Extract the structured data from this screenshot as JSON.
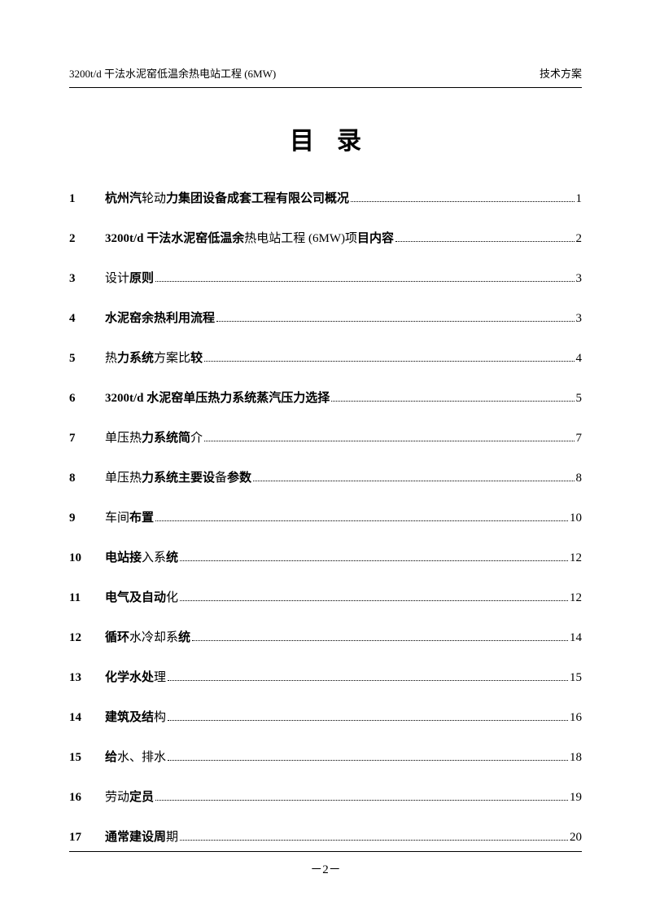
{
  "header": {
    "left": "3200t/d 干法水泥窑低温余热电站工程 (6MW)",
    "right": "技术方案"
  },
  "title": "目录",
  "toc": [
    {
      "num": "1",
      "parts": [
        {
          "t": "杭州汽",
          "b": true
        },
        {
          "t": "轮动",
          "b": false
        },
        {
          "t": "力集团设备成套工程有限公司概况",
          "b": true
        }
      ],
      "page": "1"
    },
    {
      "num": "2",
      "parts": [
        {
          "t": "3200t/d 干法水泥窑低温余",
          "b": true
        },
        {
          "t": "热电站工程 (6MW)项",
          "b": false
        },
        {
          "t": "目内容",
          "b": true
        }
      ],
      "page": "2"
    },
    {
      "num": "3",
      "parts": [
        {
          "t": "设计",
          "b": false
        },
        {
          "t": "原则",
          "b": true
        }
      ],
      "page": "3"
    },
    {
      "num": "4",
      "parts": [
        {
          "t": "水泥窑余",
          "b": true
        },
        {
          "t": "热利用流程",
          "b": true
        }
      ],
      "page": "3"
    },
    {
      "num": "5",
      "parts": [
        {
          "t": "热",
          "b": false
        },
        {
          "t": "力系统",
          "b": true
        },
        {
          "t": "方案比",
          "b": false
        },
        {
          "t": "较",
          "b": true
        }
      ],
      "page": "4"
    },
    {
      "num": "6",
      "parts": [
        {
          "t": "3200t/d 水泥窑单压热力系统蒸汽压力选择",
          "b": true
        }
      ],
      "page": "5"
    },
    {
      "num": "7",
      "parts": [
        {
          "t": "单压热",
          "b": false
        },
        {
          "t": "力系统简",
          "b": true
        },
        {
          "t": "介",
          "b": false
        }
      ],
      "page": "7"
    },
    {
      "num": "8",
      "parts": [
        {
          "t": "单压热",
          "b": false
        },
        {
          "t": "力系统主要设",
          "b": true
        },
        {
          "t": "备",
          "b": false
        },
        {
          "t": "参数",
          "b": true
        }
      ],
      "page": "8"
    },
    {
      "num": "9",
      "parts": [
        {
          "t": "车间",
          "b": false
        },
        {
          "t": "布置",
          "b": true
        }
      ],
      "page": "10"
    },
    {
      "num": "10",
      "parts": [
        {
          "t": "电站接",
          "b": true
        },
        {
          "t": "入系",
          "b": false
        },
        {
          "t": "统",
          "b": true
        }
      ],
      "page": "12"
    },
    {
      "num": "11",
      "parts": [
        {
          "t": "电气及自动",
          "b": true
        },
        {
          "t": "化",
          "b": false
        }
      ],
      "page": "12"
    },
    {
      "num": "12",
      "parts": [
        {
          "t": "循环",
          "b": true
        },
        {
          "t": "水冷却系",
          "b": false
        },
        {
          "t": "统",
          "b": true
        }
      ],
      "page": "14"
    },
    {
      "num": "13",
      "parts": [
        {
          "t": "化学水处",
          "b": true
        },
        {
          "t": "理",
          "b": false
        }
      ],
      "page": "15"
    },
    {
      "num": "14",
      "parts": [
        {
          "t": "建筑及结",
          "b": true
        },
        {
          "t": "构",
          "b": false
        }
      ],
      "page": "16"
    },
    {
      "num": "15",
      "parts": [
        {
          "t": "给",
          "b": true
        },
        {
          "t": "水、排水",
          "b": false
        }
      ],
      "page": "18"
    },
    {
      "num": "16",
      "parts": [
        {
          "t": "劳动",
          "b": false
        },
        {
          "t": "定员",
          "b": true
        }
      ],
      "page": "19"
    },
    {
      "num": "17",
      "parts": [
        {
          "t": "通常建设周",
          "b": true
        },
        {
          "t": "期",
          "b": false
        }
      ],
      "page": "20"
    }
  ],
  "footer_page": "－2－"
}
